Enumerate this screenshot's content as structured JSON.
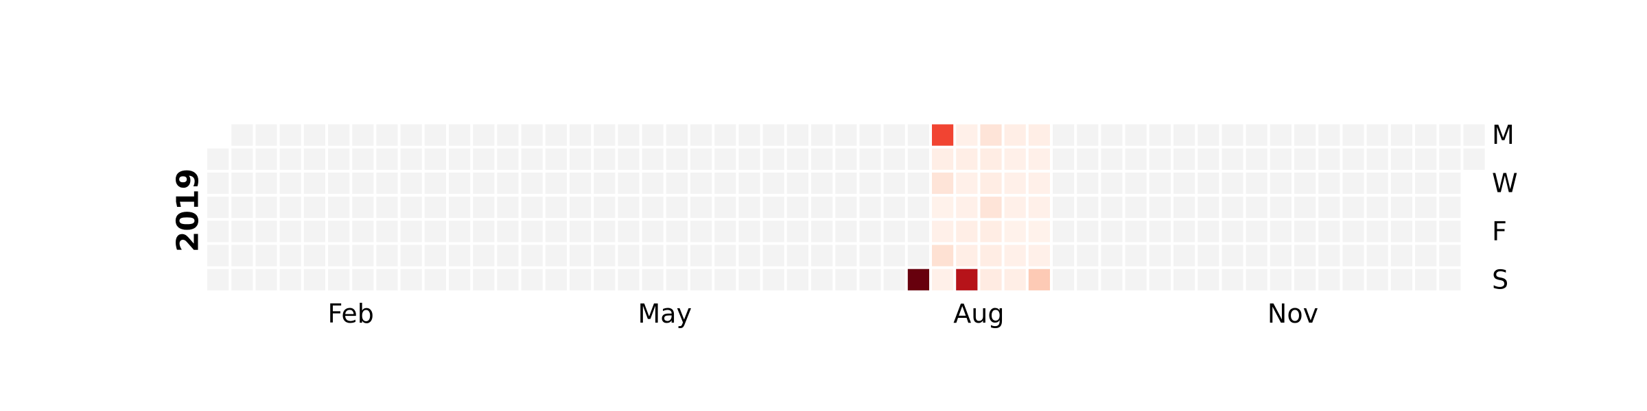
{
  "chart_data": {
    "type": "heatmap",
    "year_label": "2019",
    "year": 2019,
    "week_start": "monday",
    "month_labels": [
      "Feb",
      "May",
      "Aug",
      "Nov"
    ],
    "day_labels": [
      "M",
      "W",
      "F",
      "S"
    ],
    "colormap": "Reds",
    "empty_color": "#f3f3f3",
    "ramp": [
      "#fff5f0",
      "#fee0d2",
      "#fcbba1",
      "#fc9272",
      "#fb6a4a",
      "#ef3b2c",
      "#cb181d",
      "#a50f15",
      "#67000d"
    ],
    "values_scale_max": 1.0,
    "values": [
      {
        "date": "2019-07-28",
        "value": 1.0
      },
      {
        "date": "2019-07-29",
        "value": 0.6
      },
      {
        "date": "2019-07-30",
        "value": 0.04
      },
      {
        "date": "2019-07-31",
        "value": 0.1
      },
      {
        "date": "2019-08-01",
        "value": 0.02
      },
      {
        "date": "2019-08-02",
        "value": 0.03
      },
      {
        "date": "2019-08-03",
        "value": 0.12
      },
      {
        "date": "2019-08-04",
        "value": 0.03
      },
      {
        "date": "2019-08-05",
        "value": 0.03
      },
      {
        "date": "2019-08-06",
        "value": 0.04
      },
      {
        "date": "2019-08-07",
        "value": 0.03
      },
      {
        "date": "2019-08-08",
        "value": 0.03
      },
      {
        "date": "2019-08-09",
        "value": 0.04
      },
      {
        "date": "2019-08-10",
        "value": 0.04
      },
      {
        "date": "2019-08-11",
        "value": 0.82
      },
      {
        "date": "2019-08-12",
        "value": 0.1
      },
      {
        "date": "2019-08-13",
        "value": 0.05
      },
      {
        "date": "2019-08-14",
        "value": 0.05
      },
      {
        "date": "2019-08-15",
        "value": 0.1
      },
      {
        "date": "2019-08-16",
        "value": 0.05
      },
      {
        "date": "2019-08-17",
        "value": 0.05
      },
      {
        "date": "2019-08-18",
        "value": 0.06
      },
      {
        "date": "2019-08-19",
        "value": 0.04
      },
      {
        "date": "2019-08-20",
        "value": 0.03
      },
      {
        "date": "2019-08-21",
        "value": 0.03
      },
      {
        "date": "2019-08-22",
        "value": 0.03
      },
      {
        "date": "2019-08-23",
        "value": 0.02
      },
      {
        "date": "2019-08-24",
        "value": 0.03
      },
      {
        "date": "2019-08-25",
        "value": 0.04
      },
      {
        "date": "2019-08-26",
        "value": 0.04
      },
      {
        "date": "2019-08-27",
        "value": 0.03
      },
      {
        "date": "2019-08-28",
        "value": 0.03
      },
      {
        "date": "2019-08-29",
        "value": 0.03
      },
      {
        "date": "2019-08-30",
        "value": 0.02
      },
      {
        "date": "2019-08-31",
        "value": 0.03
      },
      {
        "date": "2019-09-01",
        "value": 0.2
      }
    ]
  }
}
